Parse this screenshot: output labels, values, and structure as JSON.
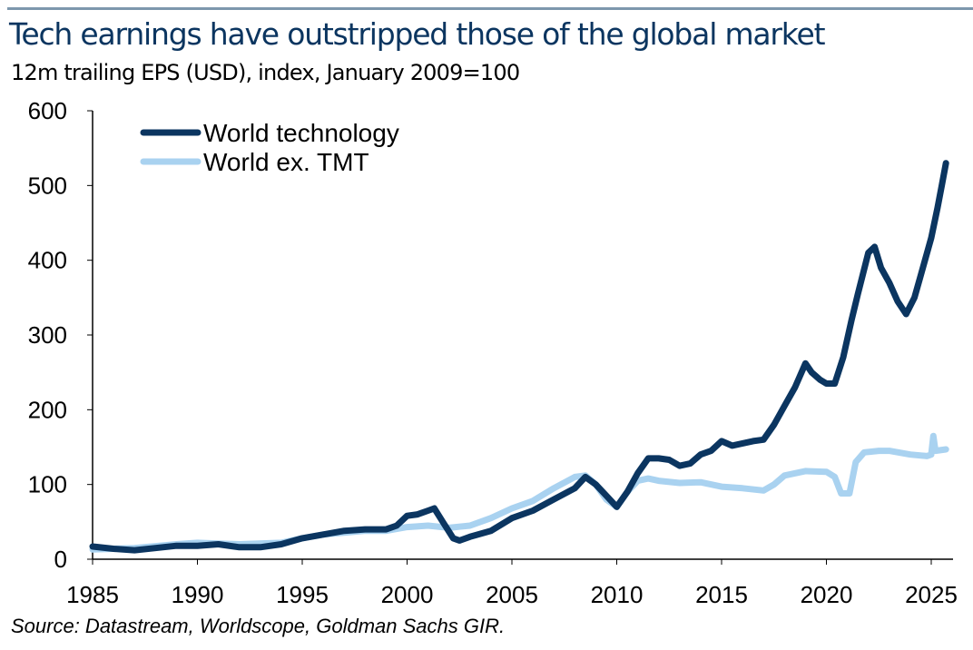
{
  "chart_data": {
    "type": "line",
    "title": "Tech earnings have outstripped those of the global market",
    "subtitle": "12m trailing EPS (USD), index, January 2009=100",
    "source": "Source: Datastream, Worldscope, Goldman Sachs GIR.",
    "xlim": [
      1985,
      2026
    ],
    "ylim": [
      0,
      600
    ],
    "xticks": [
      1985,
      1990,
      1995,
      2000,
      2005,
      2010,
      2015,
      2020,
      2025
    ],
    "yticks": [
      0,
      100,
      200,
      300,
      400,
      500,
      600
    ],
    "grid": false,
    "legend": "top-left",
    "series": [
      {
        "name": "World technology",
        "color": "#0b3560",
        "x": [
          1985,
          1986,
          1987,
          1988,
          1989,
          1990,
          1991,
          1992,
          1993,
          1994,
          1995,
          1996,
          1997,
          1998,
          1999,
          1999.5,
          2000,
          2000.5,
          2001,
          2001.3,
          2001.7,
          2002.2,
          2002.5,
          2003,
          2004,
          2005,
          2006,
          2007,
          2008,
          2008.5,
          2009,
          2009.5,
          2010,
          2010.5,
          2011,
          2011.5,
          2012,
          2012.5,
          2013,
          2013.5,
          2014,
          2014.5,
          2015,
          2015.5,
          2016,
          2016.5,
          2017,
          2017.5,
          2018,
          2018.5,
          2019,
          2019.3,
          2019.7,
          2020,
          2020.4,
          2020.8,
          2021.2,
          2021.5,
          2022,
          2022.3,
          2022.6,
          2023,
          2023.4,
          2023.8,
          2024.2,
          2024.5,
          2025,
          2025.3,
          2025.5,
          2025.7
        ],
        "y": [
          17,
          14,
          12,
          15,
          18,
          18,
          20,
          16,
          16,
          20,
          28,
          33,
          38,
          40,
          40,
          45,
          58,
          60,
          65,
          68,
          50,
          28,
          25,
          30,
          38,
          55,
          65,
          80,
          95,
          110,
          100,
          85,
          70,
          90,
          115,
          135,
          135,
          133,
          125,
          128,
          140,
          145,
          158,
          152,
          155,
          158,
          160,
          180,
          205,
          230,
          262,
          250,
          240,
          235,
          235,
          270,
          320,
          355,
          410,
          418,
          390,
          370,
          345,
          328,
          350,
          380,
          430,
          470,
          500,
          530
        ]
      },
      {
        "name": "World ex. TMT",
        "color": "#a9d2f0",
        "x": [
          1985,
          1987,
          1989,
          1990,
          1992,
          1994,
          1995,
          1996,
          1998,
          1999,
          2000,
          2001,
          2002,
          2003,
          2004,
          2005,
          2006,
          2007,
          2008,
          2008.5,
          2009,
          2009.5,
          2010,
          2010.5,
          2011,
          2011.5,
          2012,
          2013,
          2014,
          2015,
          2016,
          2017,
          2017.5,
          2018,
          2019,
          2020,
          2020.4,
          2020.7,
          2021.1,
          2021.4,
          2021.8,
          2022.5,
          2023,
          2024,
          2024.8,
          2025,
          2025.1,
          2025.2,
          2025.7
        ],
        "y": [
          13,
          15,
          20,
          22,
          20,
          22,
          28,
          33,
          38,
          38,
          43,
          45,
          42,
          45,
          55,
          68,
          78,
          95,
          110,
          112,
          100,
          80,
          70,
          90,
          105,
          108,
          105,
          102,
          103,
          97,
          95,
          92,
          100,
          112,
          118,
          117,
          110,
          88,
          88,
          130,
          143,
          145,
          145,
          140,
          138,
          140,
          165,
          145,
          147
        ]
      }
    ]
  }
}
